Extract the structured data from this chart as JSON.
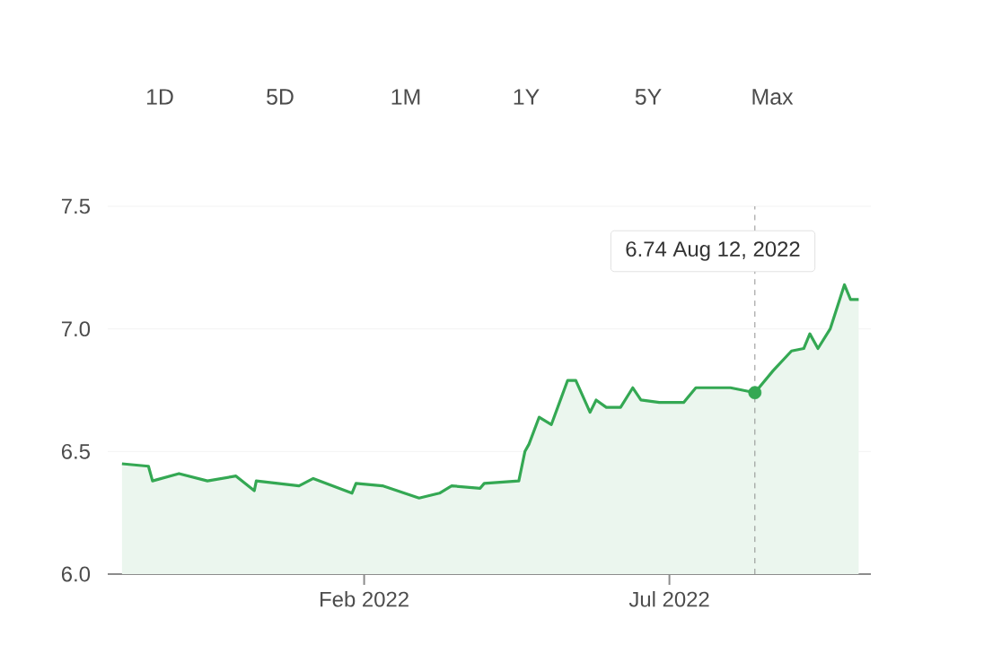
{
  "chart_data": {
    "type": "area",
    "x": [
      "2021-10-05",
      "2021-10-18",
      "2021-10-20",
      "2021-11-02",
      "2021-11-16",
      "2021-11-30",
      "2021-12-09",
      "2021-12-10",
      "2021-12-31",
      "2022-01-07",
      "2022-01-26",
      "2022-01-28",
      "2022-02-10",
      "2022-02-28",
      "2022-03-10",
      "2022-03-16",
      "2022-03-30",
      "2022-04-01",
      "2022-04-18",
      "2022-04-21",
      "2022-04-23",
      "2022-04-28",
      "2022-05-04",
      "2022-05-08",
      "2022-05-12",
      "2022-05-16",
      "2022-05-23",
      "2022-05-26",
      "2022-05-31",
      "2022-06-07",
      "2022-06-13",
      "2022-06-17",
      "2022-06-26",
      "2022-07-08",
      "2022-07-14",
      "2022-07-31",
      "2022-08-12",
      "2022-08-21",
      "2022-08-30",
      "2022-09-05",
      "2022-09-08",
      "2022-09-12",
      "2022-09-18",
      "2022-09-25",
      "2022-09-28",
      "2022-10-02"
    ],
    "series": [
      {
        "color": "#34a853",
        "values": [
          6.45,
          6.44,
          6.38,
          6.41,
          6.38,
          6.4,
          6.34,
          6.38,
          6.36,
          6.39,
          6.33,
          6.37,
          6.36,
          6.31,
          6.33,
          6.36,
          6.35,
          6.37,
          6.38,
          6.5,
          6.53,
          6.64,
          6.61,
          6.7,
          6.79,
          6.79,
          6.66,
          6.71,
          6.68,
          6.68,
          6.76,
          6.71,
          6.7,
          6.7,
          6.76,
          6.76,
          6.74,
          6.83,
          6.91,
          6.92,
          6.98,
          6.92,
          7.0,
          7.18,
          7.12,
          7.12
        ]
      },
      {
        "type": "scatter",
        "color": "#34a853",
        "x": [
          "2022-08-12"
        ],
        "values": [
          6.74
        ]
      }
    ],
    "xlim": [
      "2021-09-28",
      "2022-10-08"
    ],
    "xticks": [
      {
        "value": "2022-02-01",
        "label": "Feb 2022"
      },
      {
        "value": "2022-07-01",
        "label": "Jul 2022"
      }
    ],
    "ylim": [
      6.0,
      7.5
    ],
    "yticks": [
      {
        "value": 6.0,
        "label": "6.0"
      },
      {
        "value": 6.5,
        "label": "6.5"
      },
      {
        "value": 7.0,
        "label": "7.0"
      },
      {
        "value": 7.5,
        "label": "7.5"
      }
    ],
    "grid": "y",
    "ref_lines": [
      {
        "axis": "x",
        "value": "2022-08-12",
        "color": "#757575",
        "line_style": "dashed"
      }
    ],
    "annotations": [
      "6.74 Aug 12, 2022",
      "1D",
      "5D",
      "1M",
      "1Y",
      "5Y",
      "Max"
    ]
  }
}
